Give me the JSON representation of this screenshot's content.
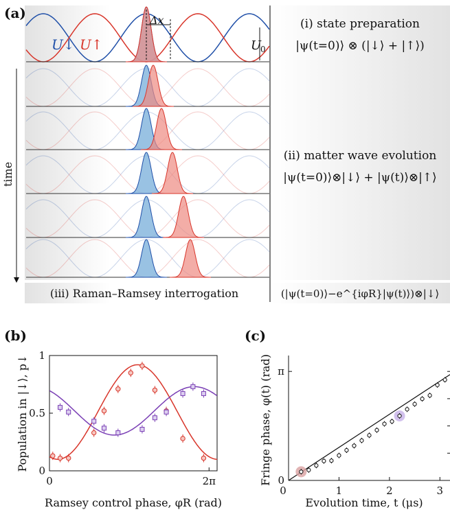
{
  "panel_a": {
    "label": "(a)",
    "u_down": "U↓",
    "u_up": "U↑",
    "delta_x": "Δx",
    "u0": "U",
    "u0_sub": "0",
    "time_label": "time",
    "step1_title": "(i) state preparation",
    "step1_eq": "|ψ(t=0)⟩ ⊗ (|↓⟩ + |↑⟩)",
    "step2_title": "(ii) matter wave evolution",
    "step2_eq": "|ψ(t=0)⟩⊗|↓⟩ + |ψ(t)⟩⊗|↑⟩",
    "step3_title": "(iii) Raman–Ramsey interrogation",
    "step3_eq": "(|ψ(t=0)⟩−e^{iφR}|ψ(t)⟩)⊗|↓⟩",
    "colors": {
      "down": "#1f4fa8",
      "up": "#d8352a",
      "down_fill": "#7fb3dc",
      "up_fill": "#ee8a82"
    }
  },
  "chart_data": [
    {
      "type": "scatter",
      "panel": "(b)",
      "xlabel": "Ramsey control phase, φR (rad)",
      "ylabel": "Population in |↓⟩, p↓",
      "xticks": [
        "0",
        "2π"
      ],
      "yticks": [
        "0",
        "0.5",
        "1"
      ],
      "xlim": [
        0,
        6.6
      ],
      "ylim": [
        0,
        1
      ],
      "series": [
        {
          "color": "#d8352a",
          "marker": "circle",
          "x": [
            0.13,
            0.42,
            0.75,
            1.75,
            2.15,
            2.7,
            3.2,
            3.65,
            4.15,
            4.6,
            5.25,
            6.07
          ],
          "y": [
            0.13,
            0.11,
            0.11,
            0.33,
            0.52,
            0.71,
            0.85,
            0.91,
            0.7,
            0.52,
            0.28,
            0.11
          ]
        },
        {
          "color": "#7a3fb5",
          "marker": "square",
          "x": [
            0.42,
            0.75,
            1.75,
            2.15,
            2.7,
            3.65,
            4.15,
            4.6,
            5.25,
            5.65,
            6.07
          ],
          "y": [
            0.55,
            0.51,
            0.43,
            0.37,
            0.33,
            0.36,
            0.46,
            0.51,
            0.67,
            0.73,
            0.67
          ]
        }
      ]
    },
    {
      "type": "scatter",
      "panel": "(c)",
      "xlabel": "Evolution time, t (μs)",
      "ylabel": "Fringe phase, φ(t) (rad)",
      "xticks": [
        "0",
        "1",
        "2",
        "3"
      ],
      "yticks": [
        "0",
        "π"
      ],
      "xlim": [
        0,
        3.2
      ],
      "ylim": [
        0,
        3.6
      ],
      "x": [
        0.25,
        0.4,
        0.55,
        0.7,
        0.85,
        1.0,
        1.15,
        1.3,
        1.45,
        1.6,
        1.75,
        1.9,
        2.05,
        2.2,
        2.35,
        2.5,
        2.65,
        2.8,
        2.95,
        3.1
      ],
      "y": [
        0.25,
        0.3,
        0.43,
        0.56,
        0.57,
        0.72,
        0.87,
        1.0,
        1.15,
        1.3,
        1.45,
        1.63,
        1.7,
        1.86,
        2.05,
        2.2,
        2.35,
        2.45,
        2.75,
        2.9
      ],
      "highlights": [
        {
          "index": 0,
          "color": "#d9a1a1"
        },
        {
          "index": 13,
          "color": "#c7b2e8"
        }
      ]
    }
  ]
}
